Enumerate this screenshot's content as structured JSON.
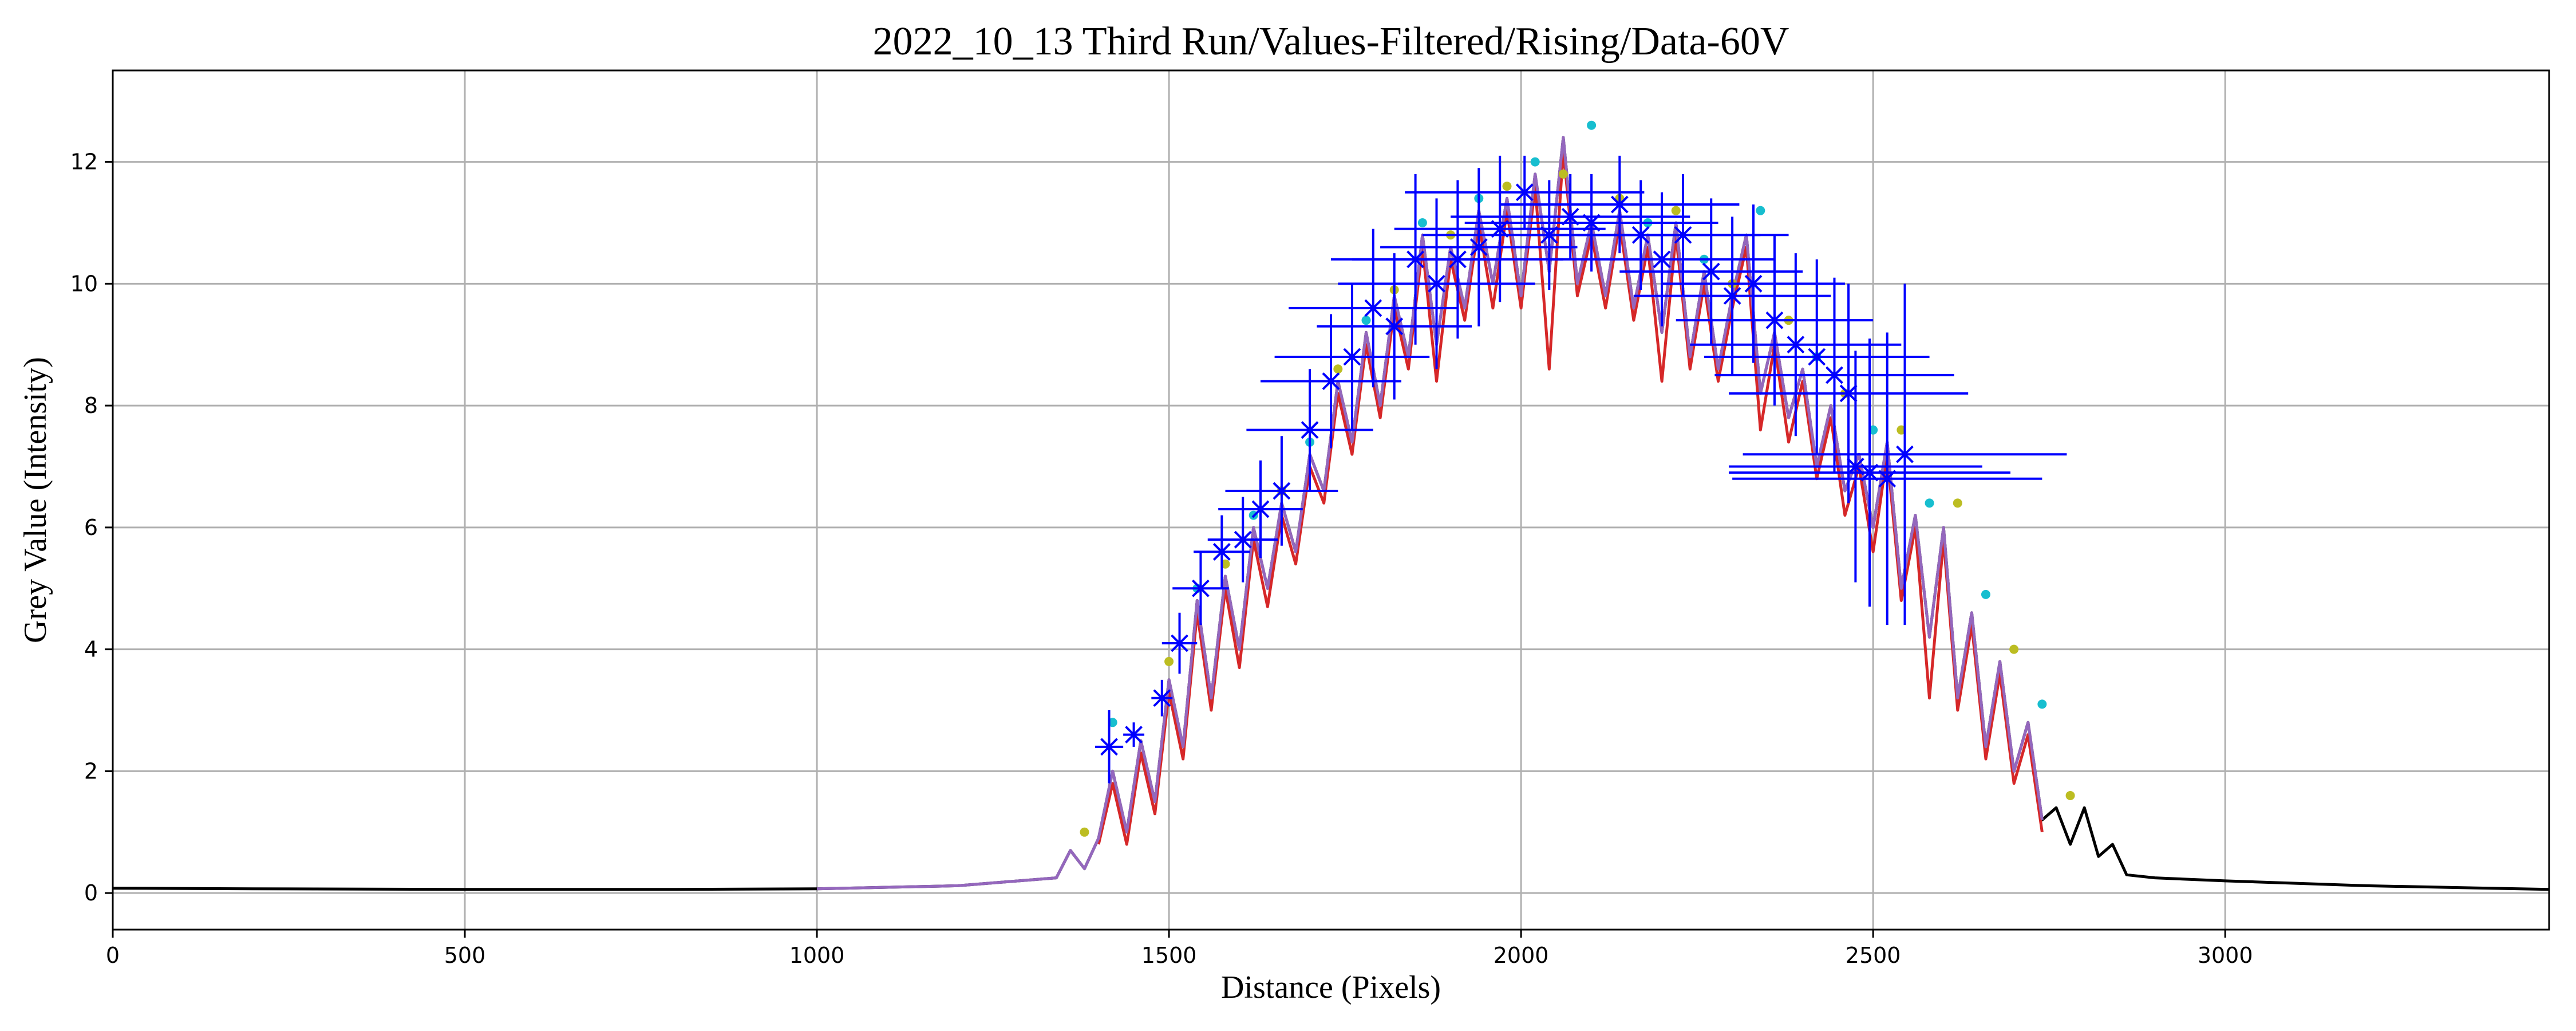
{
  "chart_data": {
    "type": "line",
    "title": "2022_10_13 Third Run/Values-Filtered/Rising/Data-60V",
    "xlabel": "Distance (Pixels)",
    "ylabel": "Grey Value (Intensity)",
    "xlim": [
      0,
      3460
    ],
    "ylim": [
      -0.6,
      13.5
    ],
    "xticks": [
      0,
      500,
      1000,
      1500,
      2000,
      2500,
      3000
    ],
    "yticks": [
      0,
      2,
      4,
      6,
      8,
      10,
      12
    ],
    "grid": true,
    "series": [
      {
        "role": "raw-profile",
        "color": "#000000",
        "x": [
          0,
          200,
          500,
          800,
          1000,
          1200,
          1340,
          1360,
          1380,
          1400,
          1420,
          1440,
          1460,
          1480,
          1500,
          1520,
          1540,
          1560,
          1580,
          1600,
          1620,
          1640,
          1660,
          1680,
          1700,
          1720,
          1740,
          1760,
          1780,
          1800,
          1820,
          1840,
          1860,
          1880,
          1900,
          1920,
          1940,
          1960,
          1980,
          2000,
          2020,
          2040,
          2060,
          2080,
          2100,
          2120,
          2140,
          2160,
          2180,
          2200,
          2220,
          2240,
          2260,
          2280,
          2300,
          2320,
          2340,
          2360,
          2380,
          2400,
          2420,
          2440,
          2460,
          2480,
          2500,
          2520,
          2540,
          2560,
          2580,
          2600,
          2620,
          2640,
          2660,
          2680,
          2700,
          2720,
          2740,
          2760,
          2780,
          2800,
          2820,
          2840,
          2860,
          2900,
          3000,
          3200,
          3460
        ],
        "y": [
          0.08,
          0.07,
          0.06,
          0.06,
          0.07,
          0.12,
          0.25,
          0.7,
          0.4,
          0.9,
          2.0,
          1.0,
          2.5,
          1.5,
          3.5,
          2.4,
          4.8,
          3.2,
          5.2,
          4.0,
          6.0,
          5.0,
          6.4,
          5.6,
          7.2,
          6.6,
          8.4,
          7.4,
          9.2,
          8.0,
          9.8,
          8.8,
          10.8,
          9.0,
          10.6,
          9.6,
          11.2,
          10.0,
          11.4,
          9.8,
          11.8,
          10.2,
          12.4,
          10.0,
          11.0,
          9.8,
          11.2,
          9.6,
          10.8,
          9.2,
          11.0,
          8.8,
          10.2,
          8.6,
          9.8,
          10.8,
          8.2,
          9.2,
          7.8,
          8.6,
          7.0,
          8.0,
          6.6,
          7.2,
          6.0,
          7.4,
          5.0,
          6.2,
          4.2,
          6.0,
          3.2,
          4.6,
          2.4,
          3.8,
          2.0,
          2.8,
          1.2,
          1.4,
          0.8,
          1.4,
          0.6,
          0.8,
          0.3,
          0.25,
          0.2,
          0.12,
          0.06
        ]
      },
      {
        "role": "filtered-red",
        "color": "#d62728",
        "x": [
          1400,
          1420,
          1440,
          1460,
          1480,
          1500,
          1520,
          1540,
          1560,
          1580,
          1600,
          1620,
          1640,
          1660,
          1680,
          1700,
          1720,
          1740,
          1760,
          1780,
          1800,
          1820,
          1840,
          1860,
          1880,
          1900,
          1920,
          1940,
          1960,
          1980,
          2000,
          2020,
          2040,
          2060,
          2080,
          2100,
          2120,
          2140,
          2160,
          2180,
          2200,
          2220,
          2240,
          2260,
          2280,
          2300,
          2320,
          2340,
          2360,
          2380,
          2400,
          2420,
          2440,
          2460,
          2480,
          2500,
          2520,
          2540,
          2560,
          2580,
          2600,
          2620,
          2640,
          2660,
          2680,
          2700,
          2720,
          2740
        ],
        "y": [
          0.8,
          1.8,
          0.8,
          2.3,
          1.3,
          3.3,
          2.2,
          4.6,
          3.0,
          5.0,
          3.7,
          5.8,
          4.7,
          6.2,
          5.4,
          7.0,
          6.4,
          8.2,
          7.2,
          9.0,
          7.8,
          9.6,
          8.6,
          10.6,
          8.4,
          10.4,
          9.4,
          11.0,
          9.6,
          11.2,
          9.6,
          11.6,
          8.6,
          12.2,
          9.8,
          10.8,
          9.6,
          11.0,
          9.4,
          10.6,
          8.4,
          10.8,
          8.6,
          10.0,
          8.4,
          9.6,
          10.6,
          7.6,
          9.0,
          7.4,
          8.4,
          6.8,
          7.8,
          6.2,
          7.0,
          5.6,
          7.2,
          4.8,
          6.0,
          3.2,
          5.8,
          3.0,
          4.4,
          2.2,
          3.6,
          1.8,
          2.6,
          1.0
        ]
      },
      {
        "role": "filtered-purple",
        "color": "#9467bd",
        "x": [
          1000,
          1200,
          1340,
          1360,
          1380,
          1400,
          1420,
          1440,
          1460,
          1480,
          1500,
          1520,
          1540,
          1560,
          1580,
          1600,
          1620,
          1640,
          1660,
          1680,
          1700,
          1720,
          1740,
          1760,
          1780,
          1800,
          1820,
          1840,
          1860,
          1880,
          1900,
          1920,
          1940,
          1960,
          1980,
          2000,
          2020,
          2040,
          2060,
          2080,
          2100,
          2120,
          2140,
          2160,
          2180,
          2200,
          2220,
          2240,
          2260,
          2280,
          2300,
          2320,
          2340,
          2360,
          2380,
          2400,
          2420,
          2440,
          2460,
          2480,
          2500,
          2520,
          2540,
          2560,
          2580,
          2600,
          2620,
          2640,
          2660,
          2680,
          2700,
          2720,
          2740
        ],
        "y": [
          0.07,
          0.12,
          0.25,
          0.7,
          0.4,
          0.9,
          2.0,
          1.0,
          2.5,
          1.5,
          3.5,
          2.4,
          4.8,
          3.2,
          5.2,
          4.0,
          6.0,
          5.0,
          6.4,
          5.6,
          7.2,
          6.6,
          8.4,
          7.4,
          9.2,
          8.0,
          9.8,
          8.8,
          10.8,
          9.0,
          10.6,
          9.6,
          11.2,
          10.0,
          11.4,
          9.8,
          11.8,
          10.2,
          12.4,
          10.0,
          11.0,
          9.8,
          11.2,
          9.6,
          10.8,
          9.2,
          11.0,
          8.8,
          10.2,
          8.6,
          9.8,
          10.8,
          8.2,
          9.2,
          7.8,
          8.6,
          7.0,
          8.0,
          6.6,
          7.2,
          6.0,
          7.4,
          5.0,
          6.2,
          4.2,
          6.0,
          3.2,
          4.6,
          2.4,
          3.8,
          2.0,
          2.8,
          1.2
        ]
      }
    ],
    "peak_markers": {
      "colors": [
        "#bcbd22",
        "#17becf"
      ],
      "x": [
        1380,
        1420,
        1500,
        1540,
        1580,
        1620,
        1660,
        1700,
        1740,
        1780,
        1820,
        1860,
        1900,
        1940,
        1980,
        2020,
        2060,
        2100,
        2140,
        2180,
        2220,
        2260,
        2300,
        2340,
        2380,
        2420,
        2460,
        2500,
        2540,
        2580,
        2620,
        2660,
        2700,
        2740,
        2780
      ],
      "y": [
        1.0,
        2.8,
        3.8,
        5.0,
        5.4,
        6.2,
        6.6,
        7.4,
        8.6,
        9.4,
        9.9,
        11.0,
        10.8,
        11.4,
        11.6,
        12.0,
        11.8,
        12.6,
        11.4,
        11.0,
        11.2,
        10.4,
        10.0,
        11.2,
        9.4,
        8.8,
        8.2,
        7.6,
        7.6,
        6.4,
        6.4,
        4.9,
        4.0,
        3.1,
        1.6
      ]
    },
    "error_bars": {
      "color": "#0000ff",
      "points": [
        {
          "x": 1415,
          "y": 2.4,
          "xerr": 20,
          "yerr": 0.6
        },
        {
          "x": 1450,
          "y": 2.6,
          "xerr": 15,
          "yerr": 0.2
        },
        {
          "x": 1490,
          "y": 3.2,
          "xerr": 15,
          "yerr": 0.3
        },
        {
          "x": 1515,
          "y": 4.1,
          "xerr": 25,
          "yerr": 0.5
        },
        {
          "x": 1545,
          "y": 5.0,
          "xerr": 40,
          "yerr": 0.6
        },
        {
          "x": 1575,
          "y": 5.6,
          "xerr": 40,
          "yerr": 0.6
        },
        {
          "x": 1605,
          "y": 5.8,
          "xerr": 50,
          "yerr": 0.7
        },
        {
          "x": 1630,
          "y": 6.3,
          "xerr": 60,
          "yerr": 0.8
        },
        {
          "x": 1660,
          "y": 6.6,
          "xerr": 80,
          "yerr": 0.9
        },
        {
          "x": 1700,
          "y": 7.6,
          "xerr": 90,
          "yerr": 1.0
        },
        {
          "x": 1730,
          "y": 8.4,
          "xerr": 100,
          "yerr": 1.1
        },
        {
          "x": 1760,
          "y": 8.8,
          "xerr": 110,
          "yerr": 1.2
        },
        {
          "x": 1790,
          "y": 9.6,
          "xerr": 120,
          "yerr": 1.3
        },
        {
          "x": 1820,
          "y": 9.3,
          "xerr": 110,
          "yerr": 1.2
        },
        {
          "x": 1850,
          "y": 10.4,
          "xerr": 120,
          "yerr": 1.4
        },
        {
          "x": 1880,
          "y": 10.0,
          "xerr": 140,
          "yerr": 1.4
        },
        {
          "x": 1910,
          "y": 10.4,
          "xerr": 150,
          "yerr": 1.3
        },
        {
          "x": 1940,
          "y": 10.6,
          "xerr": 140,
          "yerr": 1.3
        },
        {
          "x": 1970,
          "y": 10.9,
          "xerr": 150,
          "yerr": 1.2
        },
        {
          "x": 2005,
          "y": 11.5,
          "xerr": 170,
          "yerr": 0.6
        },
        {
          "x": 2040,
          "y": 10.8,
          "xerr": 180,
          "yerr": 0.9
        },
        {
          "x": 2070,
          "y": 11.1,
          "xerr": 170,
          "yerr": 0.7
        },
        {
          "x": 2100,
          "y": 11.0,
          "xerr": 180,
          "yerr": 0.8
        },
        {
          "x": 2140,
          "y": 11.3,
          "xerr": 170,
          "yerr": 0.8
        },
        {
          "x": 2170,
          "y": 10.8,
          "xerr": 170,
          "yerr": 0.9
        },
        {
          "x": 2200,
          "y": 10.4,
          "xerr": 160,
          "yerr": 1.1
        },
        {
          "x": 2230,
          "y": 10.8,
          "xerr": 150,
          "yerr": 1.0
        },
        {
          "x": 2270,
          "y": 10.2,
          "xerr": 130,
          "yerr": 1.2
        },
        {
          "x": 2300,
          "y": 9.8,
          "xerr": 140,
          "yerr": 1.3
        },
        {
          "x": 2330,
          "y": 10.0,
          "xerr": 130,
          "yerr": 1.3
        },
        {
          "x": 2360,
          "y": 9.4,
          "xerr": 140,
          "yerr": 1.4
        },
        {
          "x": 2390,
          "y": 9.0,
          "xerr": 150,
          "yerr": 1.5
        },
        {
          "x": 2420,
          "y": 8.8,
          "xerr": 160,
          "yerr": 1.6
        },
        {
          "x": 2445,
          "y": 8.5,
          "xerr": 170,
          "yerr": 1.6
        },
        {
          "x": 2465,
          "y": 8.2,
          "xerr": 170,
          "yerr": 1.8
        },
        {
          "x": 2475,
          "y": 7.0,
          "xerr": 180,
          "yerr": 1.9
        },
        {
          "x": 2495,
          "y": 6.9,
          "xerr": 200,
          "yerr": 2.2
        },
        {
          "x": 2520,
          "y": 6.8,
          "xerr": 220,
          "yerr": 2.4
        },
        {
          "x": 2545,
          "y": 7.2,
          "xerr": 230,
          "yerr": 2.8
        }
      ]
    }
  }
}
